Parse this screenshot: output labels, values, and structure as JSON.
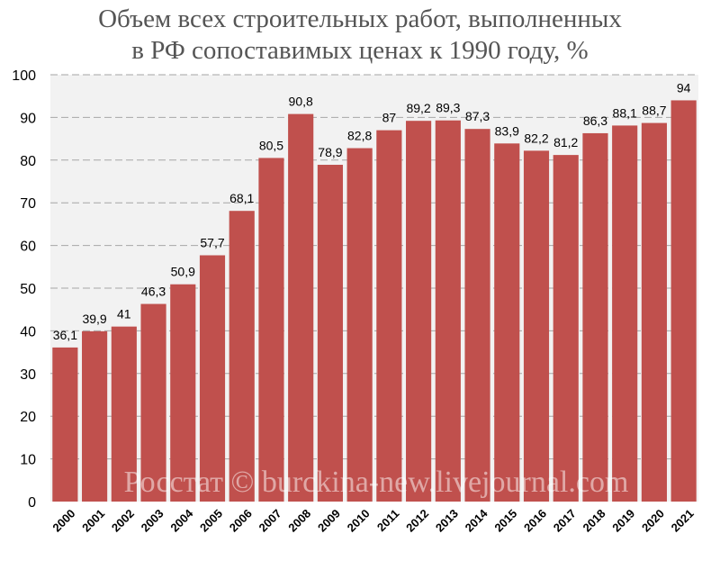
{
  "chart_data": {
    "type": "bar",
    "title_lines": [
      "Объем всех строительных работ, выполненных",
      "в РФ сопоставимых ценах к 1990 году, %"
    ],
    "categories": [
      "2000",
      "2001",
      "2002",
      "2003",
      "2004",
      "2005",
      "2006",
      "2007",
      "2008",
      "2009",
      "2010",
      "2011",
      "2012",
      "2013",
      "2014",
      "2015",
      "2016",
      "2017",
      "2018",
      "2019",
      "2020",
      "2021"
    ],
    "values": [
      36.1,
      39.9,
      41,
      46.3,
      50.9,
      57.7,
      68.1,
      80.5,
      90.8,
      78.9,
      82.8,
      87,
      89.2,
      89.3,
      87.3,
      83.9,
      82.2,
      81.2,
      86.3,
      88.1,
      88.7,
      94
    ],
    "value_labels": [
      "36,1",
      "39,9",
      "41",
      "46,3",
      "50,9",
      "57,7",
      "68,1",
      "80,5",
      "90,8",
      "78,9",
      "82,8",
      "87",
      "89,2",
      "89,3",
      "87,3",
      "83,9",
      "82,2",
      "81,2",
      "86,3",
      "88,1",
      "88,7",
      "94"
    ],
    "ylim": [
      0,
      100
    ],
    "yticks": [
      0,
      10,
      20,
      30,
      40,
      50,
      60,
      70,
      80,
      90,
      100
    ],
    "grid": true,
    "xlabel": "",
    "ylabel": "",
    "watermark": "Росстат © burckina-new.livejournal.com",
    "colors": {
      "bar": "#c0504d",
      "plot_bg": "#f2f2f2",
      "grid": "#a6a6a6"
    }
  }
}
